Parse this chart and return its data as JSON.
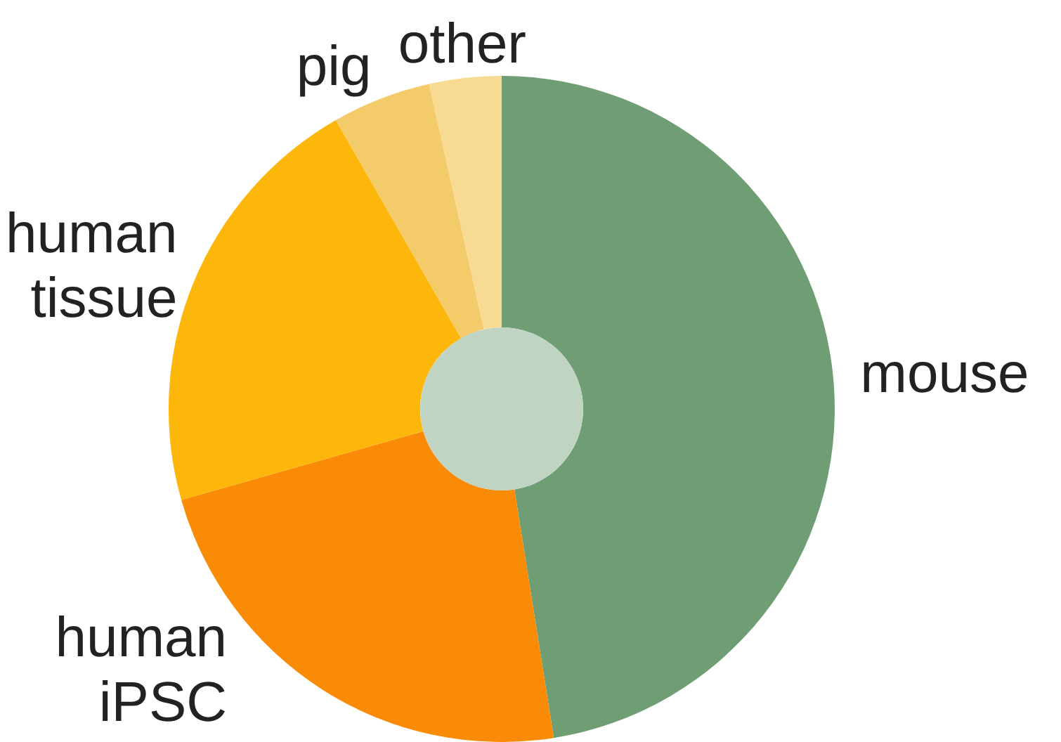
{
  "chart_data": {
    "type": "donut",
    "categories": [
      "mouse",
      "human iPSC",
      "human tissue",
      "pig",
      "other"
    ],
    "values": [
      47.5,
      23.1,
      21.1,
      4.8,
      3.5
    ],
    "colors": [
      "#709e74",
      "#f98b06",
      "#fdb60a",
      "#f4cb6a",
      "#f8db93"
    ],
    "legend": false
  }
}
